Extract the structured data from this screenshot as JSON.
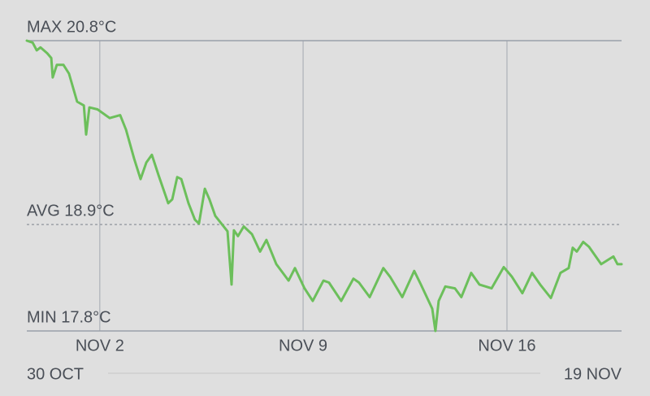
{
  "chart_data": {
    "type": "line",
    "x": [
      0,
      0.2,
      0.34,
      0.47,
      0.7,
      0.84,
      0.89,
      1.03,
      1.26,
      1.45,
      1.73,
      1.96,
      2.04,
      2.15,
      2.43,
      2.85,
      3.21,
      3.41,
      3.69,
      3.91,
      4.11,
      4.3,
      4.53,
      4.86,
      5.0,
      5.17,
      5.31,
      5.56,
      5.78,
      5.92,
      6.12,
      6.28,
      6.48,
      6.9,
      7.04,
      7.12,
      7.26,
      7.46,
      7.74,
      8.02,
      8.24,
      8.58,
      9.0,
      9.22,
      9.55,
      9.83,
      10.2,
      10.39,
      10.81,
      11.23,
      11.42,
      11.79,
      12.26,
      12.49,
      12.91,
      13.32,
      13.55,
      13.94,
      14.05,
      14.16,
      14.39,
      14.72,
      14.94,
      15.28,
      15.56,
      15.98,
      16.4,
      16.68,
      17.04,
      17.37,
      17.65,
      18.02,
      18.35,
      18.63,
      18.77,
      18.91,
      19.13,
      19.33,
      19.75,
      20.17,
      20.31,
      20.45
    ],
    "series": [
      {
        "color": "#6cbf5b",
        "values": [
          20.8,
          20.78,
          20.7,
          20.73,
          20.67,
          20.62,
          20.42,
          20.55,
          20.55,
          20.46,
          20.17,
          20.13,
          19.83,
          20.11,
          20.09,
          20.0,
          20.03,
          19.88,
          19.58,
          19.37,
          19.54,
          19.62,
          19.41,
          19.12,
          19.16,
          19.39,
          19.37,
          19.12,
          18.95,
          18.91,
          19.27,
          19.16,
          18.99,
          18.83,
          18.28,
          18.84,
          18.78,
          18.88,
          18.8,
          18.62,
          18.74,
          18.49,
          18.32,
          18.45,
          18.24,
          18.11,
          18.32,
          18.3,
          18.11,
          18.34,
          18.3,
          18.15,
          18.45,
          18.36,
          18.15,
          18.42,
          18.28,
          18.03,
          17.8,
          18.11,
          18.26,
          18.24,
          18.15,
          18.4,
          18.28,
          18.24,
          18.46,
          18.36,
          18.19,
          18.4,
          18.28,
          18.14,
          18.4,
          18.45,
          18.66,
          18.62,
          18.72,
          18.67,
          18.49,
          18.57,
          18.49,
          18.49
        ]
      }
    ],
    "xlim": [
      0,
      20.45
    ],
    "ylim": [
      17.8,
      20.8
    ],
    "xticks": [
      {
        "value": 2.51,
        "label": "NOV 2"
      },
      {
        "value": 9.5,
        "label": "NOV 9"
      },
      {
        "value": 16.51,
        "label": "NOV 16"
      }
    ],
    "range_labels": [
      "30 OCT",
      "19 NOV"
    ],
    "reference_lines": [
      {
        "label": "MAX 20.8°C",
        "value": 20.8,
        "style": "solid"
      },
      {
        "label": "AVG 18.9°C",
        "value": 18.9,
        "style": "dotted"
      },
      {
        "label": "MIN 17.8°C",
        "value": 17.8,
        "style": "solid"
      }
    ]
  }
}
